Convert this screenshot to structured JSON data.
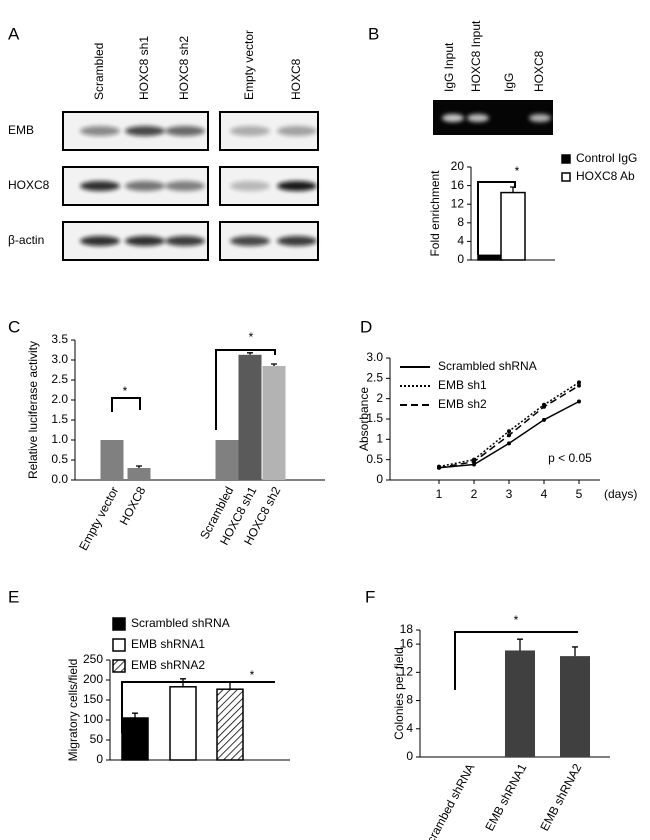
{
  "panel_labels": [
    "A",
    "B",
    "C",
    "D",
    "E",
    "F"
  ],
  "blot_a": {
    "lanes": [
      "Scrambled",
      "HOXC8 sh1",
      "HOXC8 sh2",
      "Empty vector",
      "HOXC8"
    ],
    "rows": [
      "EMB",
      "HOXC8",
      "β-actin"
    ]
  },
  "blot_b": {
    "lanes": [
      "IgG Input",
      "HOXC8 Input",
      "IgG",
      "HOXC8"
    ]
  },
  "chart_data": [
    {
      "type": "bar",
      "ylabel": "Fold enrichment",
      "categories": [
        null
      ],
      "series": [
        {
          "name": "Control IgG",
          "color": "#000000",
          "values": [
            1
          ]
        },
        {
          "name": "HOXC8 Ab",
          "color": "#ffffff",
          "values": [
            14.5
          ],
          "errors": [
            1.2
          ]
        }
      ],
      "ylim": [
        0,
        20
      ],
      "yticks": [
        0,
        4,
        8,
        12,
        16,
        20
      ],
      "annotations": [
        "*"
      ],
      "legend": "right"
    },
    {
      "type": "bar",
      "ylabel": "Relative luciferase activity",
      "categories": [
        "Empty vector",
        "HOXC8",
        null,
        "Scrambled",
        "HOXC8 sh1",
        "HOXC8 sh2"
      ],
      "values": [
        1,
        0.3,
        null,
        1,
        3.13,
        2.85
      ],
      "errors": [
        null,
        0.05,
        null,
        null,
        0.05,
        0.05
      ],
      "colors": [
        "#808080",
        "#808080",
        null,
        "#808080",
        "#5a5a5a",
        "#b3b3b3"
      ],
      "ylim": [
        0,
        3.5
      ],
      "yticks": [
        {
          "value": 0,
          "label": "0.0"
        },
        0.5,
        {
          "value": 1,
          "label": "1.0"
        },
        1.5,
        {
          "value": 2,
          "label": "2.0"
        },
        2.5,
        {
          "value": 3,
          "label": "3.0"
        },
        3.5
      ],
      "annotations": [
        "*",
        "*"
      ]
    },
    {
      "type": "line",
      "ylabel": "Absorbance",
      "xlabel": "(days)",
      "x": [
        1,
        2,
        3,
        4,
        5
      ],
      "series": [
        {
          "name": "Scrambled shRNA",
          "color": "#000000",
          "dash": "solid",
          "values": [
            0.3,
            0.38,
            0.9,
            1.48,
            1.93
          ]
        },
        {
          "name": "EMB sh1",
          "color": "#000000",
          "dash": "dotted",
          "values": [
            0.33,
            0.5,
            1.2,
            1.85,
            2.4
          ]
        },
        {
          "name": "EMB sh2",
          "color": "#000000",
          "dash": "dashed",
          "values": [
            0.3,
            0.45,
            1.1,
            1.8,
            2.32
          ]
        }
      ],
      "xlim": [
        -0.4,
        5.6
      ],
      "xticks": [
        1,
        2,
        3,
        4,
        5
      ],
      "ylim": [
        0,
        3
      ],
      "yticks": [
        0,
        0.5,
        1,
        1.5,
        2,
        2.5,
        {
          "value": 3,
          "label": "3.0"
        }
      ],
      "annotations": [
        "p < 0.05"
      ],
      "legend": "top"
    },
    {
      "type": "bar",
      "ylabel": "Migratory cells/field",
      "categories": [
        null
      ],
      "series": [
        {
          "name": "Scrambled shRNA",
          "color": "#000000",
          "values": [
            105
          ],
          "errors": [
            12
          ]
        },
        {
          "name": "EMB shRNA1",
          "color": "#ffffff",
          "values": [
            183
          ],
          "errors": [
            20
          ]
        },
        {
          "name": "EMB shRNA2",
          "color": "#ffffff",
          "pattern": "hatch",
          "values": [
            177
          ],
          "errors": [
            18
          ]
        }
      ],
      "ylim": [
        0,
        250
      ],
      "yticks": [
        0,
        50,
        100,
        150,
        200,
        250
      ],
      "annotations": [
        "*"
      ],
      "legend": "top"
    },
    {
      "type": "bar",
      "ylabel": "Colonies per field",
      "categories": [
        "Scrambed shRNA",
        "EMB shRNA1",
        "EMB shRNA2"
      ],
      "values": [
        0,
        15.1,
        14.3
      ],
      "errors": [
        null,
        1.6,
        1.3
      ],
      "color": "#404040",
      "ylim": [
        0,
        18
      ],
      "yticks": [
        0,
        4,
        8,
        12,
        16,
        18
      ],
      "annotations": [
        "*"
      ]
    }
  ]
}
